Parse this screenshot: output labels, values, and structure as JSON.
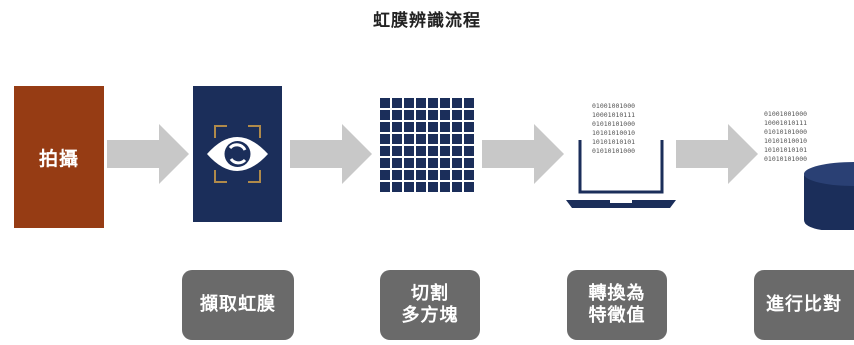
{
  "title": "虹膜辨識流程",
  "steps": {
    "capture": "拍攝",
    "extract": "擷取虹膜",
    "split": {
      "line1": "切割",
      "line2": "多方塊"
    },
    "convert": {
      "line1": "轉換為",
      "line2": "特徵值"
    },
    "compare": "進行比對"
  },
  "binary_text": [
    "01001001000",
    "10001010111",
    "01010101000",
    "10101010010",
    "10101010101",
    "01010101000"
  ],
  "colors": {
    "brown": "#963c14",
    "navy": "#1b2e5a",
    "gray": "#6a6a6a",
    "arrow": "#c8c8c8",
    "gold": "#b08a4a"
  }
}
